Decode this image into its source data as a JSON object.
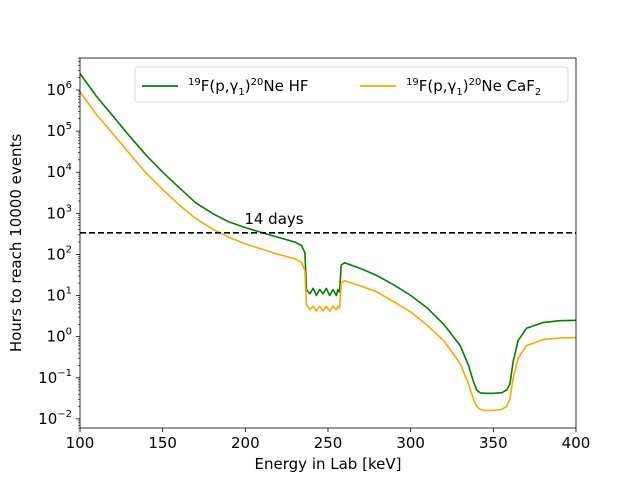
{
  "chart_data": {
    "type": "line",
    "title": "",
    "xlabel": "Energy in Lab [keV]",
    "ylabel": "Hours to reach 10000 events",
    "xlim": [
      100,
      400
    ],
    "ylim": [
      0.006,
      6000000
    ],
    "yscale": "log",
    "grid": false,
    "legend_placement": "top-right",
    "x_ticks": [
      {
        "value": 100,
        "label": "100"
      },
      {
        "value": 150,
        "label": "150"
      },
      {
        "value": 200,
        "label": "200"
      },
      {
        "value": 250,
        "label": "250"
      },
      {
        "value": 300,
        "label": "300"
      },
      {
        "value": 350,
        "label": "350"
      },
      {
        "value": 400,
        "label": "400"
      }
    ],
    "y_ticks": [
      {
        "value": 0.01,
        "base": "10",
        "exp": "−2"
      },
      {
        "value": 0.1,
        "base": "10",
        "exp": "−1"
      },
      {
        "value": 1,
        "base": "10",
        "exp": "0"
      },
      {
        "value": 10,
        "base": "10",
        "exp": "1"
      },
      {
        "value": 100,
        "base": "10",
        "exp": "2"
      },
      {
        "value": 1000,
        "base": "10",
        "exp": "3"
      },
      {
        "value": 10000,
        "base": "10",
        "exp": "4"
      },
      {
        "value": 100000,
        "base": "10",
        "exp": "5"
      },
      {
        "value": 1000000,
        "base": "10",
        "exp": "6"
      }
    ],
    "series": [
      {
        "name_prefix": "19",
        "name_main": "F(p,γ",
        "name_sub": "1",
        "name_close": ")",
        "name_prefix2": "20",
        "name_suffix": "Ne HF",
        "color": "#008000",
        "x": [
          100,
          110,
          120,
          130,
          140,
          150,
          160,
          170,
          180,
          190,
          200,
          210,
          220,
          230,
          234,
          236,
          237,
          239,
          241,
          243,
          245,
          247,
          249,
          251,
          253,
          255,
          256,
          257,
          258,
          260,
          270,
          280,
          290,
          300,
          310,
          320,
          330,
          335,
          338,
          340,
          342,
          345,
          350,
          355,
          358,
          360,
          362,
          365,
          370,
          380,
          390,
          400
        ],
        "y": [
          2500000,
          700000,
          230000,
          75000,
          26000,
          10000,
          4200,
          1800,
          1000,
          620,
          450,
          340,
          260,
          200,
          165,
          110,
          14,
          11,
          15,
          10,
          14,
          11,
          15,
          10,
          14,
          10,
          14,
          12,
          55,
          63,
          45,
          30,
          18,
          10,
          5,
          2,
          0.6,
          0.2,
          0.08,
          0.05,
          0.043,
          0.042,
          0.042,
          0.043,
          0.05,
          0.07,
          0.25,
          0.8,
          1.6,
          2.2,
          2.45,
          2.5
        ]
      },
      {
        "name_prefix": "19",
        "name_main": "F(p,γ",
        "name_sub": "1",
        "name_close": ")",
        "name_prefix2": "20",
        "name_suffix": "Ne CaF",
        "name_sub2": "2",
        "color": "#FFA500",
        "x": [
          100,
          110,
          120,
          130,
          140,
          150,
          160,
          170,
          180,
          190,
          200,
          210,
          220,
          230,
          234,
          236,
          237,
          239,
          241,
          243,
          245,
          247,
          249,
          251,
          253,
          255,
          256,
          257,
          258,
          260,
          270,
          280,
          290,
          300,
          310,
          320,
          330,
          335,
          338,
          340,
          342,
          345,
          350,
          355,
          358,
          360,
          362,
          365,
          370,
          380,
          390,
          400
        ],
        "y": [
          900000,
          250000,
          85000,
          28000,
          9500,
          3800,
          1600,
          750,
          420,
          260,
          180,
          135,
          100,
          78,
          65,
          40,
          6,
          4.5,
          5.5,
          4.2,
          5.5,
          4.3,
          5.5,
          4.2,
          5.5,
          4.5,
          5.5,
          5,
          20,
          23,
          17,
          12,
          7,
          4,
          1.9,
          0.8,
          0.22,
          0.07,
          0.03,
          0.02,
          0.017,
          0.016,
          0.016,
          0.017,
          0.02,
          0.03,
          0.1,
          0.3,
          0.6,
          0.85,
          0.93,
          0.95
        ]
      }
    ],
    "threshold": {
      "value": 336,
      "label": "14 days",
      "label_x": 200
    }
  }
}
